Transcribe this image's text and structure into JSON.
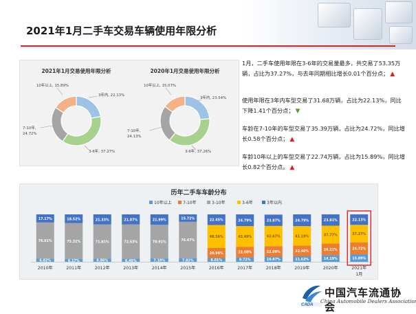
{
  "page": {
    "title": "2021年1月二手车交易车辆使用年限分析"
  },
  "annotations": [
    {
      "text": "1月，二手车使用年限在3-6年的交易量最多，共交易了53.35万辆，占比为37.27%，与去年同期相比增长0.01个百分点；",
      "trend": "up"
    },
    {
      "text": "使用年限在3年内车型交易了31.68万辆，占比为22.13%，同比下降1.41个百分点；",
      "trend": "down"
    },
    {
      "text": "车龄在7-10年的车型交易了35.39万辆，占比为24.72%，同比增长0.58个百分点；",
      "trend": "up"
    },
    {
      "text": "车龄10年以上的车型交易了22.74万辆，占比为15.89%，同比增长0.82个百分点。",
      "trend": "up"
    }
  ],
  "colors": {
    "under3": "#9cc3e6",
    "y3_6": "#a9d18e",
    "y7_10": "#a5a5a5",
    "over10": "#f4b183",
    "bar_under3": "#4472c4",
    "bar_3_6": "#ffc000",
    "bar_3_10": "#a5a5a5",
    "bar_7_10": "#ed7d31",
    "bar_over10": "#5b9bd5"
  },
  "chart_data": [
    {
      "type": "pie",
      "title": "2021年1月交易使用年限分析",
      "slices": [
        {
          "label": "3年内, 22.13%",
          "value": 22.13,
          "color": "#9cc3e6"
        },
        {
          "label": "3-6年, 37.27%",
          "value": 37.27,
          "color": "#a9d18e"
        },
        {
          "label": "7-10年, 24.72%",
          "value": 24.72,
          "color": "#a5a5a5"
        },
        {
          "label": "10年以上, 15.89%",
          "value": 15.89,
          "color": "#f4b183"
        }
      ]
    },
    {
      "type": "pie",
      "title": "2020年1月交易使用年限分析",
      "slices": [
        {
          "label": "3年内, 23.54%",
          "value": 23.54,
          "color": "#9cc3e6"
        },
        {
          "label": "3-6年, 37.26%",
          "value": 37.26,
          "color": "#a9d18e"
        },
        {
          "label": "7-10年, 24.13%",
          "value": 24.13,
          "color": "#a5a5a5"
        },
        {
          "label": "10年以上, 15.07%",
          "value": 15.07,
          "color": "#f4b183"
        }
      ]
    },
    {
      "type": "bar",
      "title": "历年二手车车龄分布",
      "legend": [
        "10年以上",
        "7-10年",
        "3-10年",
        "3-6年",
        "3年以内"
      ],
      "categories": [
        "2010年",
        "2011年",
        "2012年",
        "2013年",
        "2014年",
        "2015年",
        "2016年",
        "2017年",
        "2018年",
        "2019年",
        "2020年",
        "2021年1月"
      ],
      "series": [
        {
          "name": "10年以上",
          "values": [
            6.82,
            6.17,
            6.86,
            6.4,
            7.1,
            7.82,
            8.01,
            9.72,
            10.87,
            11.63,
            14.19,
            15.89
          ]
        },
        {
          "name": "7-10年",
          "values": [
            null,
            null,
            null,
            null,
            null,
            null,
            20.98,
            22.0,
            22.09,
            22.4,
            24.22,
            24.72
          ]
        },
        {
          "name": "3-10年",
          "values": [
            76.01,
            75.31,
            71.81,
            72.53,
            70.91,
            76.47,
            null,
            null,
            null,
            null,
            null,
            null
          ]
        },
        {
          "name": "3-6年",
          "values": [
            null,
            null,
            null,
            null,
            null,
            null,
            48.56,
            43.49,
            42.67,
            41.19,
            37.77,
            37.27
          ]
        },
        {
          "name": "3年以内",
          "values": [
            17.17,
            18.52,
            21.33,
            21.07,
            21.99,
            15.72,
            22.45,
            24.79,
            23.87,
            24.79,
            23.91,
            22.13
          ]
        }
      ],
      "label_values": {
        "10年以上": [
          "6.82%",
          "6.17%",
          "6.86%",
          "6.40%",
          "7.10%",
          "7.82%",
          "8.01%",
          "9.72%",
          "10.87%",
          "11.63%",
          "14.19%",
          "15.89%"
        ],
        "7-10年": [
          "",
          "",
          "",
          "",
          "",
          "",
          "20.98%",
          "22.00%",
          "22.09%",
          "22.40%",
          "24.22%",
          "24.72%"
        ],
        "3-10年": [
          "76.01%",
          "75.31%",
          "71.81%",
          "72.53%",
          "70.91%",
          "76.47%",
          "",
          "",
          "",
          "",
          "",
          ""
        ],
        "3-6年": [
          "",
          "",
          "",
          "",
          "",
          "",
          "48.56%",
          "43.49%",
          "42.67%",
          "41.19%",
          "37.77%",
          "37.27%"
        ],
        "3年以内": [
          "17.17%",
          "18.52%",
          "21.33%",
          "21.07%",
          "21.99%",
          "15.72%",
          "22.45%",
          "24.79%",
          "23.87%",
          "24.79%",
          "23.91%",
          "22.13%"
        ]
      },
      "highlight": "2021年1月",
      "ylim": [
        0,
        100
      ]
    }
  ],
  "logo": {
    "cn": "中国汽车流通协会",
    "en": "China Automobile Dealers Association",
    "abbr": "CADA"
  }
}
